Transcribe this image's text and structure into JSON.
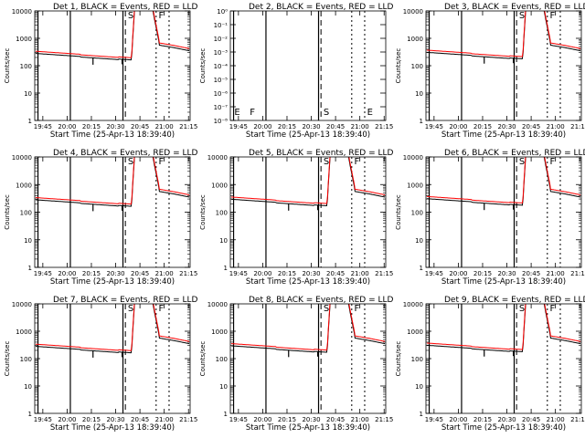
{
  "figure": {
    "xlabel_prefix": "Start Time (",
    "start_time": "25-Apr-13 18:39:40",
    "xlabel_suffix": ")",
    "ylabel": "Counts/sec",
    "series_legend": ", BLACK = Events, RED = LLD",
    "panel_title_prefix": "Det "
  },
  "colors": {
    "events": "#000000",
    "lld": "#ff0000",
    "axes": "#000000"
  },
  "chart_data": [
    {
      "det": "1",
      "variant": "standard",
      "type": "line",
      "xticks": [
        "19:45",
        "20:00",
        "20:15",
        "20:30",
        "20:45",
        "21:00",
        "21:15"
      ],
      "yscale": "log",
      "ylim": [
        1,
        10000
      ],
      "yticks": [
        "1",
        "10",
        "100",
        "1000",
        "10000"
      ],
      "series": [
        {
          "name": "Events"
        },
        {
          "name": "LLD"
        }
      ],
      "annotations": [
        "S",
        "F"
      ]
    },
    {
      "det": "2",
      "variant": "empty",
      "type": "line",
      "xticks": [
        "19:45",
        "20:00",
        "20:15",
        "20:30",
        "20:45",
        "21:00",
        "21:15"
      ],
      "yscale": "log",
      "ylim": [
        1,
        1e-08
      ],
      "yticks": [
        "10⁻⁸",
        "10⁻⁷",
        "10⁻⁶",
        "10⁻⁵",
        "10⁻⁴",
        "10⁻³",
        "10⁻²",
        "10⁻¹",
        "10⁰"
      ],
      "series": [],
      "annotations": [
        "E",
        "F",
        "S",
        "E"
      ]
    },
    {
      "det": "3",
      "variant": "standard",
      "type": "line",
      "xticks": [
        "19:45",
        "20:00",
        "20:15",
        "20:30",
        "20:45",
        "21:00",
        "21:15"
      ],
      "yscale": "log",
      "ylim": [
        1,
        10000
      ],
      "yticks": [
        "1",
        "10",
        "100",
        "1000",
        "10000"
      ],
      "series": [
        {
          "name": "Events"
        },
        {
          "name": "LLD"
        }
      ],
      "annotations": [
        "S",
        "F"
      ]
    },
    {
      "det": "4",
      "variant": "standard",
      "type": "line",
      "xticks": [
        "19:45",
        "20:00",
        "20:15",
        "20:30",
        "20:45",
        "21:00",
        "21:15"
      ],
      "yscale": "log",
      "ylim": [
        1,
        10000
      ],
      "yticks": [
        "1",
        "10",
        "100",
        "1000",
        "10000"
      ],
      "series": [
        {
          "name": "Events"
        },
        {
          "name": "LLD"
        }
      ],
      "annotations": [
        "S",
        "F"
      ]
    },
    {
      "det": "5",
      "variant": "standard",
      "type": "line",
      "xticks": [
        "19:45",
        "20:00",
        "20:15",
        "20:30",
        "20:45",
        "21:00",
        "21:15"
      ],
      "yscale": "log",
      "ylim": [
        1,
        10000
      ],
      "yticks": [
        "1",
        "10",
        "100",
        "1000",
        "10000"
      ],
      "series": [
        {
          "name": "Events"
        },
        {
          "name": "LLD"
        }
      ],
      "annotations": [
        "S",
        "F"
      ]
    },
    {
      "det": "6",
      "variant": "standard",
      "type": "line",
      "xticks": [
        "19:45",
        "20:00",
        "20:15",
        "20:30",
        "20:45",
        "21:00",
        "21:15"
      ],
      "yscale": "log",
      "ylim": [
        1,
        10000
      ],
      "yticks": [
        "1",
        "10",
        "100",
        "1000",
        "10000"
      ],
      "series": [
        {
          "name": "Events"
        },
        {
          "name": "LLD"
        }
      ],
      "annotations": [
        "S",
        "F"
      ]
    },
    {
      "det": "7",
      "variant": "standard",
      "type": "line",
      "xticks": [
        "19:45",
        "20:00",
        "20:15",
        "20:30",
        "20:45",
        "21:00",
        "21:15"
      ],
      "yscale": "log",
      "ylim": [
        1,
        10000
      ],
      "yticks": [
        "1",
        "10",
        "100",
        "1000",
        "10000"
      ],
      "series": [
        {
          "name": "Events"
        },
        {
          "name": "LLD"
        }
      ],
      "annotations": [
        "S",
        "F"
      ]
    },
    {
      "det": "8",
      "variant": "standard",
      "type": "line",
      "xticks": [
        "19:45",
        "20:00",
        "20:15",
        "20:30",
        "20:45",
        "21:00",
        "21:15"
      ],
      "yscale": "log",
      "ylim": [
        1,
        10000
      ],
      "yticks": [
        "1",
        "10",
        "100",
        "1000",
        "10000"
      ],
      "series": [
        {
          "name": "Events"
        },
        {
          "name": "LLD"
        }
      ],
      "annotations": [
        "S",
        "F"
      ]
    },
    {
      "det": "9",
      "variant": "standard",
      "type": "line",
      "xticks": [
        "19:45",
        "20:00",
        "20:15",
        "20:30",
        "20:45",
        "21:00",
        "21:15"
      ],
      "yscale": "log",
      "ylim": [
        1,
        10000
      ],
      "yticks": [
        "1",
        "10",
        "100",
        "1000",
        "10000"
      ],
      "series": [
        {
          "name": "Events"
        },
        {
          "name": "LLD"
        }
      ],
      "annotations": [
        "S",
        "F"
      ]
    }
  ]
}
